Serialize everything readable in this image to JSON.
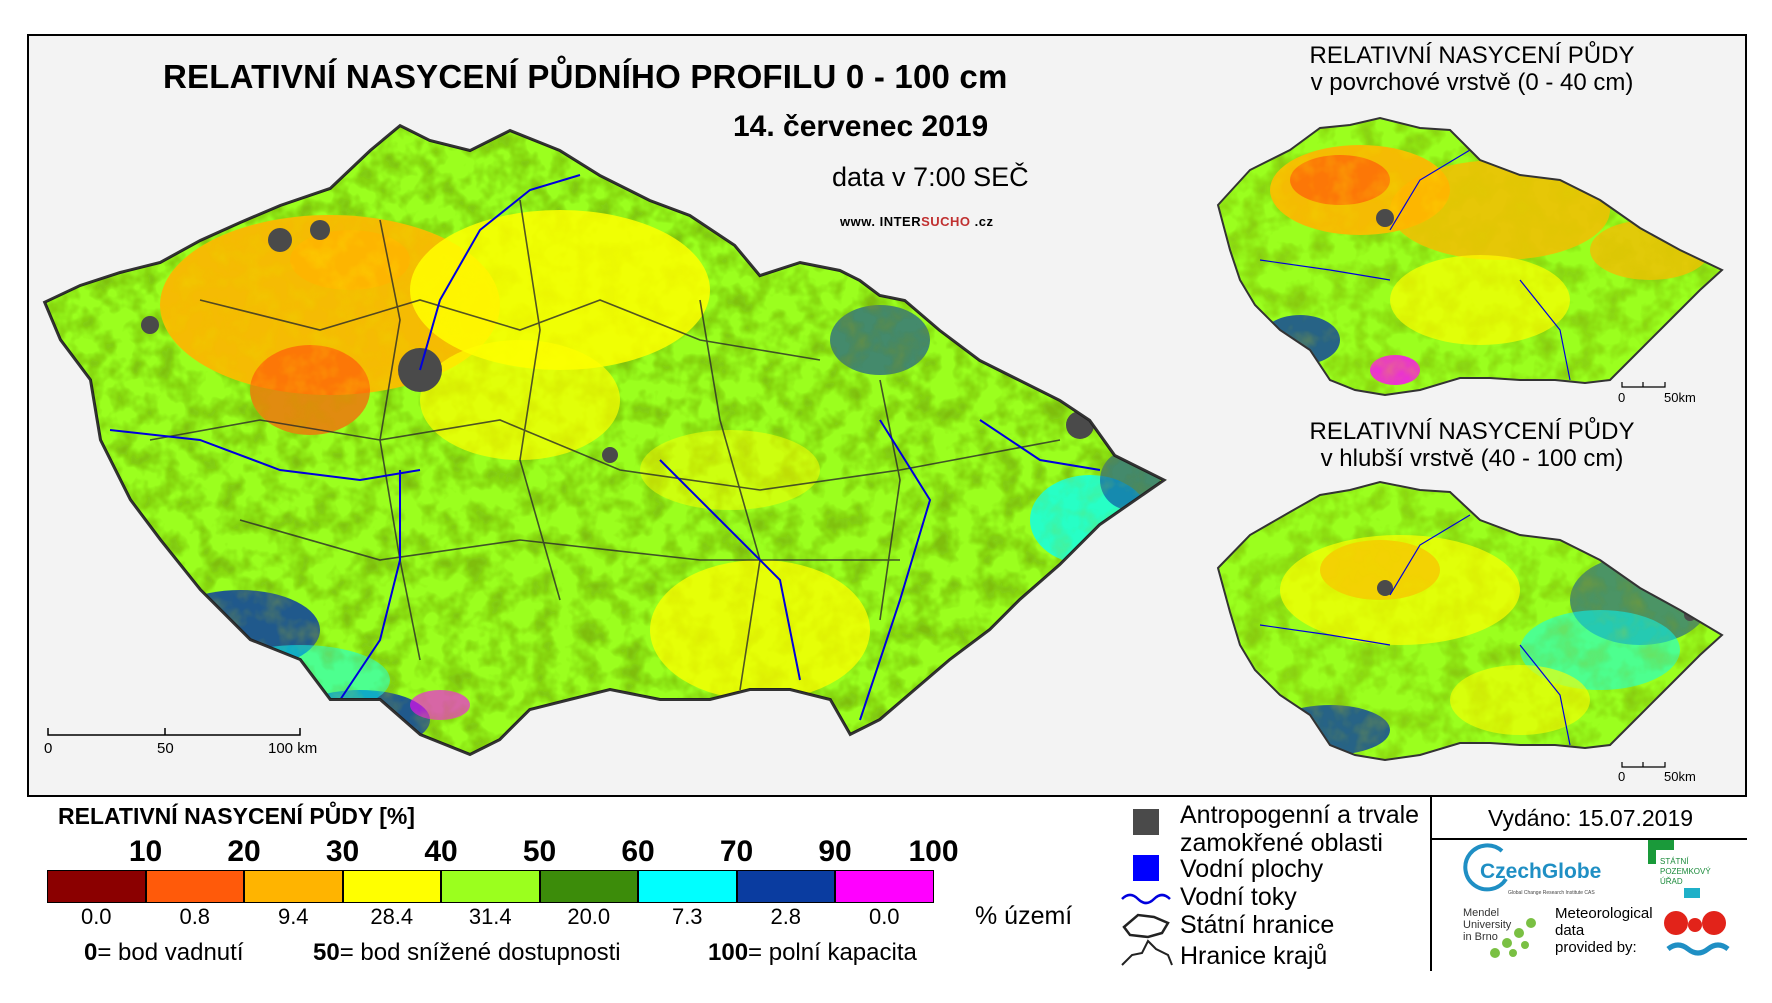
{
  "main": {
    "title": "RELATIVNÍ NASYCENÍ PŮDNÍHO PROFILU 0 - 100 cm",
    "date": "14. červenec 2019",
    "time": "data v 7:00 SEČ",
    "website_prefix": "www.",
    "website_a": "INTER",
    "website_b": "SUCHO",
    "website_suffix": ".cz",
    "scale": {
      "zero": "0",
      "mid": "50",
      "end": "100 km"
    }
  },
  "inset_surface": {
    "title_line1": "RELATIVNÍ NASYCENÍ PŮDY",
    "title_line2": "v povrchové vrstvě (0 - 40 cm)",
    "scale": {
      "zero": "0",
      "end": "50km"
    }
  },
  "inset_deep": {
    "title_line1": "RELATIVNÍ NASYCENÍ PŮDY",
    "title_line2": "v hlubší vrstvě (40 - 100 cm)",
    "scale": {
      "zero": "0",
      "end": "50km"
    }
  },
  "legend": {
    "title": "RELATIVNÍ NASYCENÍ PŮDY [%]",
    "thresholds": [
      "10",
      "20",
      "30",
      "40",
      "50",
      "60",
      "70",
      "90",
      "100"
    ],
    "classes": [
      {
        "color": "#8b0000",
        "share": "0.0"
      },
      {
        "color": "#ff5a0a",
        "share": "0.8"
      },
      {
        "color": "#ffb400",
        "share": "9.4"
      },
      {
        "color": "#ffff00",
        "share": "28.4"
      },
      {
        "color": "#9bff1e",
        "share": "31.4"
      },
      {
        "color": "#3c8c0a",
        "share": "20.0"
      },
      {
        "color": "#00ffff",
        "share": "7.3"
      },
      {
        "color": "#0a3ca0",
        "share": "2.8"
      },
      {
        "color": "#ff00ff",
        "share": "0.0"
      }
    ],
    "share_unit": "% území",
    "notes": [
      {
        "value": "0",
        "text": "= bod vadnutí"
      },
      {
        "value": "50",
        "text": "= bod snížené dostupnosti"
      },
      {
        "value": "100",
        "text": "= polní kapacita"
      }
    ]
  },
  "key": {
    "anthropogenic_line1": "Antropogenní a trvale",
    "anthropogenic_line2": "zamokřené oblasti",
    "water_bodies": "Vodní plochy",
    "rivers": "Vodní toky",
    "state_border": "Státní hranice",
    "region_border": "Hranice krajů",
    "colors": {
      "anthropogenic": "#4a4a4a",
      "water": "#0000ff",
      "river": "#0000dd"
    }
  },
  "footer": {
    "issued": "Vydáno: 15.07.2019",
    "czechglobe": "CzechGlobe",
    "czechglobe_sub": "Global Change Research Institute CAS",
    "mendel_line1": "Mendel",
    "mendel_line2": "University",
    "mendel_line3": "in Brno",
    "meteo_line1": "Meteorological",
    "meteo_line2": "data",
    "meteo_line3": "provided by:",
    "spu_line1": "STÁTNÍ",
    "spu_line2": "POZEMKOVÝ",
    "spu_line3": "ÚŘAD"
  }
}
